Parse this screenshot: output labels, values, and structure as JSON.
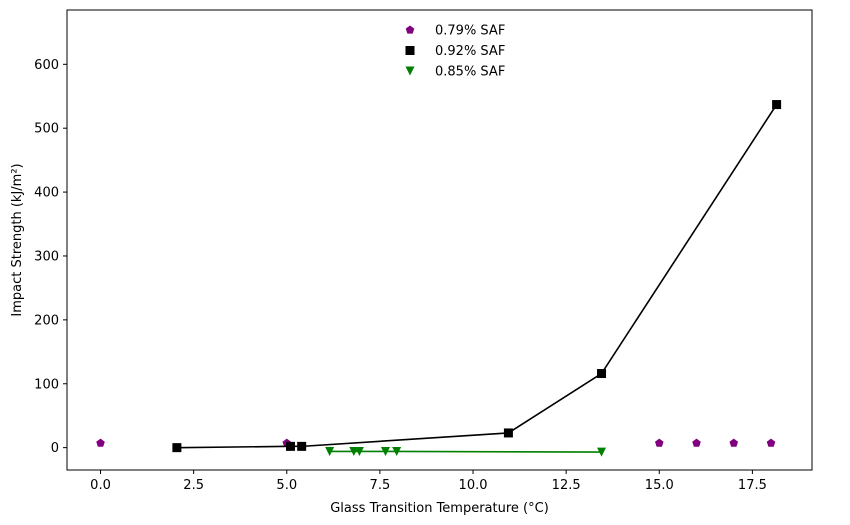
{
  "chart_data": {
    "type": "scatter",
    "title": "",
    "xlabel": "Glass Transition Temperature (°C)",
    "ylabel": "Impact Strength (kJ/m²)",
    "xlim": [
      -0.9,
      19.1
    ],
    "ylim": [
      -35,
      685
    ],
    "xticks": [
      0.0,
      2.5,
      5.0,
      7.5,
      10.0,
      12.5,
      15.0,
      17.5
    ],
    "xtick_labels": [
      "0.0",
      "2.5",
      "5.0",
      "7.5",
      "10.0",
      "12.5",
      "15.0",
      "17.5"
    ],
    "yticks": [
      0,
      100,
      200,
      300,
      400,
      500,
      600
    ],
    "ytick_labels": [
      "0",
      "100",
      "200",
      "300",
      "400",
      "500",
      "600"
    ],
    "grid": false,
    "legend_position": "upper center",
    "series": [
      {
        "name": "0.79% SAF",
        "marker": "pentagon",
        "color": "#800080",
        "line": false,
        "points": [
          [
            0.0,
            7
          ],
          [
            5.0,
            7
          ],
          [
            15.0,
            7
          ],
          [
            16.0,
            7
          ],
          [
            17.0,
            7
          ],
          [
            18.0,
            7
          ]
        ]
      },
      {
        "name": "0.92% SAF",
        "marker": "square",
        "color": "#000000",
        "line": true,
        "points": [
          [
            2.05,
            0
          ],
          [
            5.1,
            2
          ],
          [
            5.4,
            2
          ],
          [
            10.95,
            23
          ],
          [
            13.45,
            116
          ],
          [
            18.15,
            537
          ]
        ]
      },
      {
        "name": "0.85% SAF",
        "marker": "triangle-down",
        "color": "#008000",
        "line": true,
        "points": [
          [
            6.15,
            -6
          ],
          [
            6.8,
            -6
          ],
          [
            6.95,
            -6
          ],
          [
            7.65,
            -6
          ],
          [
            7.95,
            -6
          ],
          [
            13.45,
            -7
          ]
        ]
      }
    ]
  }
}
